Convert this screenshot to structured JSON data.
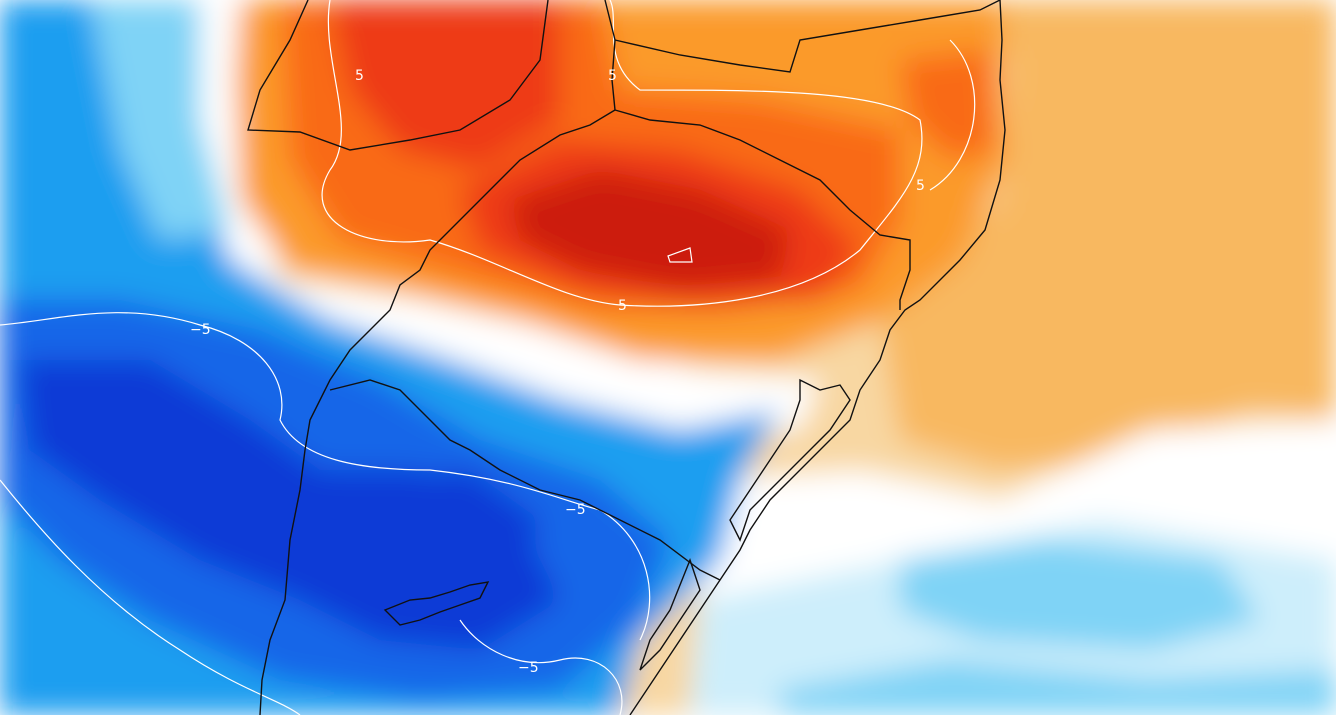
{
  "map": {
    "type": "temperature-anomaly-shaded-map",
    "colors": {
      "deep_red": "#cc1a0a",
      "red": "#ee3a12",
      "orange_red": "#f96a14",
      "orange": "#fb9a2a",
      "light_orange": "#f8b860",
      "pale_orange": "#f8d7a2",
      "white": "#ffffff",
      "pale_blue": "#cdeefb",
      "light_blue": "#7fd3f6",
      "blue": "#1f9ef0",
      "mid_blue": "#1566e8",
      "deep_blue": "#0a3ad6",
      "contour_line": "#ffffff",
      "border_line": "#111111"
    },
    "contour_labels": [
      {
        "id": "pos1",
        "text": "5"
      },
      {
        "id": "pos2",
        "text": "5"
      },
      {
        "id": "pos3",
        "text": "5"
      },
      {
        "id": "pos4",
        "text": "5"
      },
      {
        "id": "neg1",
        "text": "−5"
      },
      {
        "id": "neg2",
        "text": "−5"
      },
      {
        "id": "neg3",
        "text": "−5"
      }
    ]
  }
}
